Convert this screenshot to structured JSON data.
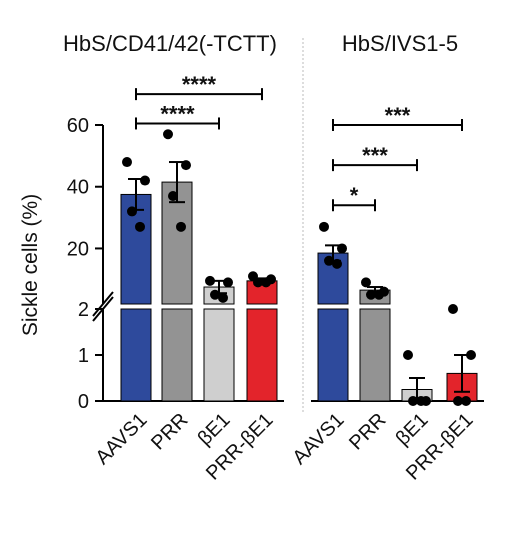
{
  "chart_data": {
    "type": "bar",
    "ylabel": "Sickle cells (%)",
    "axis_break": {
      "lower_range": [
        0,
        2
      ],
      "upper_range": [
        2,
        60
      ]
    },
    "y_ticks": {
      "lower": [
        {
          "value": 0,
          "label": "0"
        },
        {
          "value": 1,
          "label": "1"
        },
        {
          "value": 2,
          "label": "2"
        }
      ],
      "upper": [
        {
          "value": 20,
          "label": "20"
        },
        {
          "value": 40,
          "label": "40"
        },
        {
          "value": 60,
          "label": "60"
        }
      ]
    },
    "panels": [
      {
        "title": "HbS/CD41/42(-TCTT)",
        "categories": [
          "AAVS1",
          "PRR",
          "βE1",
          "PRR-βE1"
        ],
        "bars": [
          {
            "category": "AAVS1",
            "mean": 37.5,
            "sem": 5.0,
            "color": "#2e4a9c",
            "points": [
              48,
              42,
              32,
              27
            ]
          },
          {
            "category": "PRR",
            "mean": 41.5,
            "sem": 6.5,
            "color": "#939393",
            "points": [
              57,
              47,
              37,
              27
            ]
          },
          {
            "category": "βE1",
            "mean": 7.5,
            "sem": 2.0,
            "color": "#cfcfcf",
            "points": [
              9.5,
              9,
              5,
              4
            ]
          },
          {
            "category": "PRR-βE1",
            "mean": 9.5,
            "sem": 0.8,
            "color": "#e3242b",
            "points": [
              11,
              10,
              9,
              9
            ]
          }
        ],
        "comparisons": [
          {
            "from": "AAVS1",
            "to": "PRR-βE1",
            "label": "****",
            "y": 70
          },
          {
            "from": "AAVS1",
            "to": "βE1",
            "label": "****",
            "y": 60.5
          }
        ]
      },
      {
        "title": "HbS/IVS1-5",
        "categories": [
          "AAVS1",
          "PRR",
          "βE1",
          "PRR-βE1"
        ],
        "bars": [
          {
            "category": "AAVS1",
            "mean": 18.5,
            "sem": 2.5,
            "color": "#2e4a9c",
            "points": [
              27,
              20,
              16,
              15
            ]
          },
          {
            "category": "PRR",
            "mean": 6.5,
            "sem": 1.0,
            "color": "#939393",
            "points": [
              9,
              6,
              5,
              5
            ]
          },
          {
            "category": "βE1",
            "mean": 0.25,
            "sem": 0.25,
            "color": "#cfcfcf",
            "points": [
              1,
              0,
              0,
              0
            ]
          },
          {
            "category": "PRR-βE1",
            "mean": 0.6,
            "sem": 0.4,
            "color": "#e3242b",
            "points": [
              2,
              1,
              0,
              0
            ]
          }
        ],
        "comparisons": [
          {
            "from": "AAVS1",
            "to": "PRR-βE1",
            "label": "***",
            "y": 60
          },
          {
            "from": "AAVS1",
            "to": "βE1",
            "label": "***",
            "y": 47
          },
          {
            "from": "AAVS1",
            "to": "PRR",
            "label": "*",
            "y": 34
          }
        ]
      }
    ]
  }
}
